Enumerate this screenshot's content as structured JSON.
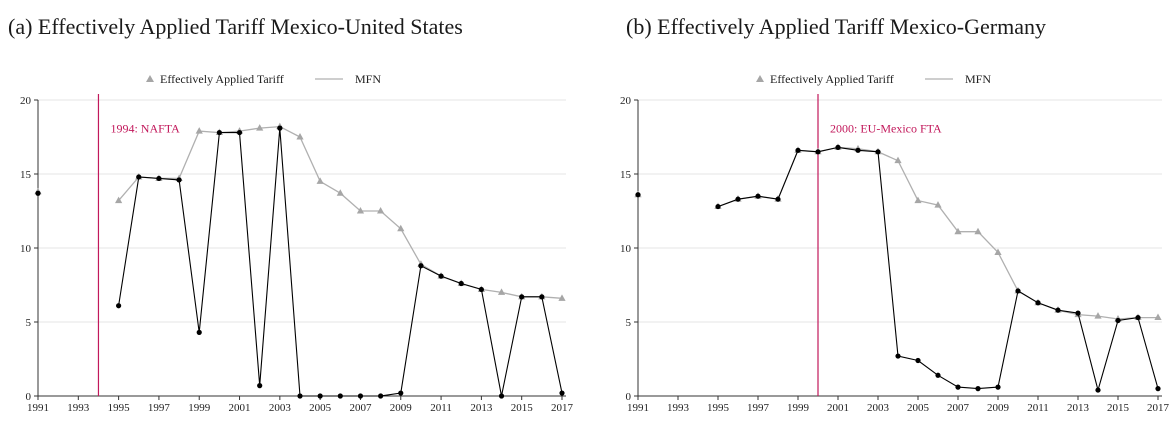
{
  "chart_data": [
    {
      "type": "line",
      "title": "(a) Effectively Applied Tariff Mexico-United States",
      "xlim": [
        1991,
        2017
      ],
      "ylim": [
        0,
        20
      ],
      "xticks": [
        "1991",
        "1993",
        "1995",
        "1997",
        "1999",
        "2001",
        "2003",
        "2005",
        "2007",
        "2009",
        "2011",
        "2013",
        "2015",
        "2017"
      ],
      "yticks": [
        "0",
        "5",
        "10",
        "15",
        "20"
      ],
      "grid": true,
      "legend_position": "top-center",
      "annotation": {
        "x": 1994,
        "label": "1994: NAFTA"
      },
      "series": [
        {
          "name": "Effectively Applied Tariff",
          "marker": "triangle",
          "color": "#a6a6a6",
          "points": [
            [
              1991,
              13.8
            ],
            [
              1995,
              13.2
            ],
            [
              1996,
              14.8
            ],
            [
              1997,
              14.7
            ],
            [
              1998,
              14.7
            ],
            [
              1999,
              17.9
            ],
            [
              2000,
              17.8
            ],
            [
              2001,
              17.9
            ],
            [
              2002,
              18.1
            ],
            [
              2003,
              18.2
            ],
            [
              2004,
              17.5
            ],
            [
              2005,
              14.5
            ],
            [
              2006,
              13.7
            ],
            [
              2007,
              12.5
            ],
            [
              2008,
              12.5
            ],
            [
              2009,
              11.3
            ],
            [
              2010,
              8.9
            ],
            [
              2011,
              8.1
            ],
            [
              2012,
              7.6
            ],
            [
              2013,
              7.2
            ],
            [
              2014,
              7.0
            ],
            [
              2015,
              6.7
            ],
            [
              2016,
              6.7
            ],
            [
              2017,
              6.6
            ]
          ]
        },
        {
          "name": "MFN",
          "marker": "none",
          "color": "#b0b0b0",
          "points": [
            [
              1991,
              13.8
            ],
            [
              1995,
              13.2
            ],
            [
              1996,
              14.8
            ],
            [
              1997,
              14.7
            ],
            [
              1998,
              14.7
            ],
            [
              1999,
              17.9
            ],
            [
              2000,
              17.8
            ],
            [
              2001,
              17.9
            ],
            [
              2002,
              18.1
            ],
            [
              2003,
              18.2
            ],
            [
              2004,
              17.5
            ],
            [
              2005,
              14.5
            ],
            [
              2006,
              13.7
            ],
            [
              2007,
              12.5
            ],
            [
              2008,
              12.5
            ],
            [
              2009,
              11.3
            ],
            [
              2010,
              8.9
            ],
            [
              2011,
              8.1
            ],
            [
              2012,
              7.6
            ],
            [
              2013,
              7.2
            ],
            [
              2014,
              7.0
            ],
            [
              2015,
              6.7
            ],
            [
              2016,
              6.7
            ],
            [
              2017,
              6.6
            ]
          ]
        },
        {
          "marker": "circle",
          "color": "#000000",
          "points": [
            [
              1991,
              13.7
            ],
            [
              1995,
              6.1
            ],
            [
              1996,
              14.8
            ],
            [
              1997,
              14.7
            ],
            [
              1998,
              14.6
            ],
            [
              1999,
              4.3
            ],
            [
              2000,
              17.8
            ],
            [
              2001,
              17.8
            ],
            [
              2002,
              0.7
            ],
            [
              2003,
              18.1
            ],
            [
              2004,
              0.0
            ],
            [
              2005,
              0.0
            ],
            [
              2006,
              0.0
            ],
            [
              2007,
              0.0
            ],
            [
              2008,
              0.0
            ],
            [
              2009,
              0.2
            ],
            [
              2010,
              8.8
            ],
            [
              2011,
              8.1
            ],
            [
              2012,
              7.6
            ],
            [
              2013,
              7.2
            ],
            [
              2014,
              0.0
            ],
            [
              2015,
              6.7
            ],
            [
              2016,
              6.7
            ],
            [
              2017,
              0.2
            ]
          ]
        }
      ]
    },
    {
      "type": "line",
      "title": "(b) Effectively Applied Tariff Mexico-Germany",
      "xlim": [
        1991,
        2017
      ],
      "ylim": [
        0,
        20
      ],
      "xticks": [
        "1991",
        "1993",
        "1995",
        "1997",
        "1999",
        "2001",
        "2003",
        "2005",
        "2007",
        "2009",
        "2011",
        "2013",
        "2015",
        "2017"
      ],
      "yticks": [
        "0",
        "5",
        "10",
        "15",
        "20"
      ],
      "grid": true,
      "legend_position": "top-center",
      "annotation": {
        "x": 2000,
        "label": "2000: EU-Mexico FTA"
      },
      "series": [
        {
          "name": "Effectively Applied Tariff",
          "marker": "triangle",
          "color": "#a6a6a6",
          "points": [
            [
              1991,
              13.6
            ],
            [
              1995,
              12.8
            ],
            [
              1996,
              13.3
            ],
            [
              1997,
              13.5
            ],
            [
              1998,
              13.3
            ],
            [
              1999,
              16.6
            ],
            [
              2000,
              16.5
            ],
            [
              2001,
              16.8
            ],
            [
              2002,
              16.7
            ],
            [
              2003,
              16.5
            ],
            [
              2004,
              15.9
            ],
            [
              2005,
              13.2
            ],
            [
              2006,
              12.9
            ],
            [
              2007,
              11.1
            ],
            [
              2008,
              11.1
            ],
            [
              2009,
              9.7
            ],
            [
              2010,
              7.1
            ],
            [
              2011,
              6.3
            ],
            [
              2012,
              5.8
            ],
            [
              2013,
              5.5
            ],
            [
              2014,
              5.4
            ],
            [
              2015,
              5.2
            ],
            [
              2016,
              5.3
            ],
            [
              2017,
              5.3
            ]
          ]
        },
        {
          "name": "MFN",
          "marker": "none",
          "color": "#b0b0b0",
          "points": [
            [
              1991,
              13.6
            ],
            [
              1995,
              12.8
            ],
            [
              1996,
              13.3
            ],
            [
              1997,
              13.5
            ],
            [
              1998,
              13.3
            ],
            [
              1999,
              16.6
            ],
            [
              2000,
              16.5
            ],
            [
              2001,
              16.8
            ],
            [
              2002,
              16.7
            ],
            [
              2003,
              16.5
            ],
            [
              2004,
              15.9
            ],
            [
              2005,
              13.2
            ],
            [
              2006,
              12.9
            ],
            [
              2007,
              11.1
            ],
            [
              2008,
              11.1
            ],
            [
              2009,
              9.7
            ],
            [
              2010,
              7.1
            ],
            [
              2011,
              6.3
            ],
            [
              2012,
              5.8
            ],
            [
              2013,
              5.5
            ],
            [
              2014,
              5.4
            ],
            [
              2015,
              5.2
            ],
            [
              2016,
              5.3
            ],
            [
              2017,
              5.3
            ]
          ]
        },
        {
          "marker": "circle",
          "color": "#000000",
          "points": [
            [
              1991,
              13.6
            ],
            [
              1995,
              12.8
            ],
            [
              1996,
              13.3
            ],
            [
              1997,
              13.5
            ],
            [
              1998,
              13.3
            ],
            [
              1999,
              16.6
            ],
            [
              2000,
              16.5
            ],
            [
              2001,
              16.8
            ],
            [
              2002,
              16.6
            ],
            [
              2003,
              16.5
            ],
            [
              2004,
              2.7
            ],
            [
              2005,
              2.4
            ],
            [
              2006,
              1.4
            ],
            [
              2007,
              0.6
            ],
            [
              2008,
              0.5
            ],
            [
              2009,
              0.6
            ],
            [
              2010,
              7.1
            ],
            [
              2011,
              6.3
            ],
            [
              2012,
              5.8
            ],
            [
              2013,
              5.6
            ],
            [
              2014,
              0.4
            ],
            [
              2015,
              5.1
            ],
            [
              2016,
              5.3
            ],
            [
              2017,
              0.5
            ]
          ]
        }
      ]
    }
  ],
  "colors": {
    "annotation": "#c2185b",
    "grid": "#e5e5e5",
    "axis": "#333333"
  }
}
